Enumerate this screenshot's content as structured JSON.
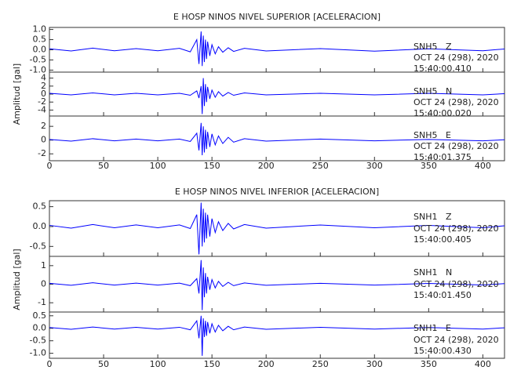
{
  "chart_data": [
    {
      "type": "line",
      "title": "E HOSP NINOS NIVEL SUPERIOR [ACELERACION]",
      "y_label": "Amplitud [gal]",
      "xlim": [
        0,
        420
      ],
      "xticks": [
        0,
        50,
        100,
        150,
        200,
        250,
        300,
        350,
        400
      ],
      "x": [
        0,
        20,
        40,
        60,
        80,
        100,
        120,
        130,
        136,
        138,
        140,
        141,
        142,
        143,
        144,
        145,
        146,
        148,
        150,
        153,
        156,
        160,
        165,
        170,
        180,
        200,
        250,
        300,
        350,
        400,
        420
      ],
      "panels": [
        {
          "color": "#0000ff",
          "ylim": [
            -1.1,
            1.1
          ],
          "yticks": [
            {
              "value": -1,
              "label": "-1.0"
            },
            -0.5,
            {
              "value": 0,
              "label": "0.0"
            },
            0.5,
            {
              "value": 1,
              "label": "1.0"
            }
          ],
          "annotations": [
            "SNH5   Z",
            "OCT 24 (298), 2020",
            "15:40:00.410"
          ],
          "values": [
            0.05,
            -0.06,
            0.08,
            -0.05,
            0.06,
            -0.05,
            0.07,
            -0.1,
            0.5,
            -0.7,
            0.9,
            -0.8,
            0.7,
            -0.6,
            0.5,
            -0.45,
            0.4,
            -0.3,
            0.25,
            -0.2,
            0.15,
            -0.12,
            0.1,
            -0.08,
            0.07,
            -0.06,
            0.06,
            -0.07,
            0.05,
            -0.05,
            0.04
          ]
        },
        {
          "color": "#0000ff",
          "ylim": [
            -5.5,
            5.5
          ],
          "yticks": [
            -4,
            -2,
            0,
            2,
            4
          ],
          "annotations": [
            "SNH5   N",
            "OCT 24 (298), 2020",
            "15:40:00.020"
          ],
          "values": [
            0.2,
            -0.2,
            0.3,
            -0.2,
            0.2,
            -0.2,
            0.2,
            -0.3,
            0.8,
            -1,
            2,
            -5,
            4,
            -3,
            2.5,
            -2,
            1.8,
            -1.2,
            1,
            -0.8,
            0.6,
            -0.5,
            0.4,
            -0.3,
            0.3,
            -0.2,
            0.2,
            -0.2,
            0.2,
            -0.2,
            0.1
          ]
        },
        {
          "color": "#0000ff",
          "ylim": [
            -3,
            3.5
          ],
          "yticks": [
            -2,
            0,
            2
          ],
          "annotations": [
            "SNH5   E",
            "OCT 24 (298), 2020",
            "15:40:01.375"
          ],
          "values": [
            0.1,
            -0.15,
            0.2,
            -0.1,
            0.15,
            -0.1,
            0.15,
            -0.2,
            1,
            -1.5,
            2.5,
            -2.2,
            2,
            -1.8,
            1.5,
            -1.3,
            1.2,
            -1,
            0.9,
            -0.7,
            0.6,
            -0.5,
            0.4,
            -0.3,
            0.2,
            -0.15,
            0.15,
            -0.1,
            0.1,
            -0.1,
            0.05
          ]
        }
      ]
    },
    {
      "type": "line",
      "title": "E HOSP NINOS NIVEL INFERIOR [ACELERACION]",
      "y_label": "Amplitud [gal]",
      "xlim": [
        0,
        420
      ],
      "xticks": [
        0,
        50,
        100,
        150,
        200,
        250,
        300,
        350,
        400
      ],
      "x": [
        0,
        20,
        40,
        60,
        80,
        100,
        120,
        130,
        136,
        138,
        140,
        141,
        142,
        143,
        144,
        145,
        146,
        148,
        150,
        153,
        156,
        160,
        165,
        170,
        180,
        200,
        250,
        300,
        350,
        400,
        420
      ],
      "panels": [
        {
          "color": "#0000ff",
          "ylim": [
            -0.75,
            0.65
          ],
          "yticks": [
            -0.5,
            {
              "value": 0,
              "label": "0.0"
            },
            0.5
          ],
          "annotations": [
            "SNH1   Z",
            "OCT 24 (298), 2020",
            "15:40:00.405"
          ],
          "values": [
            0.03,
            -0.04,
            0.05,
            -0.03,
            0.04,
            -0.03,
            0.04,
            -0.05,
            0.3,
            -0.7,
            0.6,
            -0.5,
            0.45,
            -0.4,
            0.35,
            -0.3,
            0.3,
            -0.25,
            0.2,
            -0.15,
            0.12,
            -0.1,
            0.08,
            -0.06,
            0.05,
            -0.04,
            0.04,
            -0.03,
            0.03,
            -0.03,
            0.02
          ]
        },
        {
          "color": "#0000ff",
          "ylim": [
            -1.5,
            1.5
          ],
          "yticks": [
            -1,
            0,
            1
          ],
          "annotations": [
            "SNH1   N",
            "OCT 24 (298), 2020",
            "15:40:01.450"
          ],
          "values": [
            0.05,
            -0.06,
            0.08,
            -0.05,
            0.06,
            -0.05,
            0.06,
            -0.08,
            0.3,
            -0.5,
            1.3,
            -1.4,
            0.9,
            -0.7,
            0.6,
            -0.5,
            0.4,
            -0.3,
            0.25,
            -0.2,
            0.15,
            -0.12,
            0.1,
            -0.08,
            0.07,
            -0.06,
            0.05,
            -0.05,
            0.04,
            -0.04,
            0.03
          ]
        },
        {
          "color": "#0000ff",
          "ylim": [
            -1.2,
            0.65
          ],
          "yticks": [
            {
              "value": -1,
              "label": "-1.0"
            },
            -0.5,
            {
              "value": 0,
              "label": "0.0"
            },
            0.5
          ],
          "annotations": [
            "SNH1   E",
            "OCT 24 (298), 2020",
            "15:40:00.430"
          ],
          "values": [
            0.03,
            -0.04,
            0.05,
            -0.03,
            0.04,
            -0.03,
            0.04,
            -0.06,
            0.3,
            -0.4,
            0.5,
            -1.1,
            0.4,
            -0.35,
            0.3,
            -0.3,
            0.25,
            -0.2,
            0.18,
            -0.15,
            0.12,
            -0.1,
            0.08,
            -0.06,
            0.05,
            -0.04,
            0.04,
            -0.03,
            0.03,
            -0.03,
            0.02
          ]
        }
      ]
    }
  ]
}
